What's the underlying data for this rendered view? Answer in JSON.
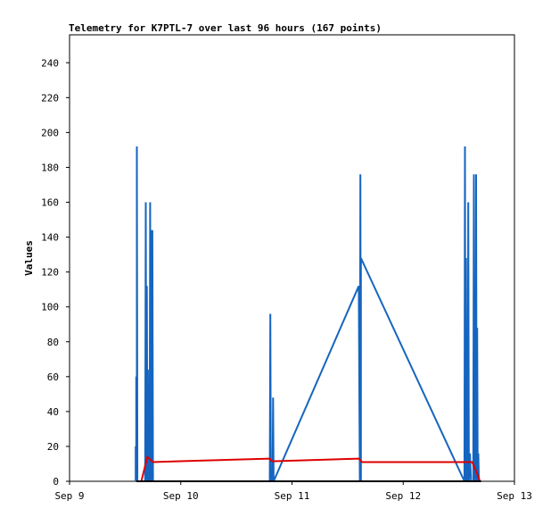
{
  "chart_data": {
    "type": "line",
    "title": "Telemetry for K7PTL-7 over last 96 hours (167 points)",
    "xlabel": "",
    "ylabel": "Values",
    "x_unit": "days since Sep 9 00:00",
    "xlim": [
      0,
      4
    ],
    "ylim": [
      0,
      256
    ],
    "x_ticks": [
      {
        "value": 0,
        "label": "Sep 9"
      },
      {
        "value": 1,
        "label": "Sep 10"
      },
      {
        "value": 2,
        "label": "Sep 11"
      },
      {
        "value": 3,
        "label": "Sep 12"
      },
      {
        "value": 4,
        "label": "Sep 13"
      }
    ],
    "y_ticks": [
      0,
      20,
      40,
      60,
      80,
      100,
      120,
      140,
      160,
      180,
      200,
      220,
      240
    ],
    "grid": false,
    "legend": "none",
    "series": [
      {
        "color": "#1565c0",
        "points": [
          [
            0.595,
            0
          ],
          [
            0.595,
            20
          ],
          [
            0.6,
            0
          ],
          [
            0.6,
            60
          ],
          [
            0.605,
            0
          ],
          [
            0.605,
            192
          ],
          [
            0.61,
            0
          ],
          [
            0.68,
            0
          ],
          [
            0.685,
            160
          ],
          [
            0.69,
            0
          ],
          [
            0.695,
            112
          ],
          [
            0.7,
            0
          ],
          [
            0.705,
            64
          ],
          [
            0.71,
            0
          ],
          [
            0.72,
            0
          ],
          [
            0.725,
            160
          ],
          [
            0.73,
            0
          ],
          [
            0.735,
            144
          ],
          [
            0.74,
            0
          ],
          [
            0.745,
            144
          ],
          [
            0.75,
            0
          ],
          [
            1.8,
            0
          ],
          [
            1.805,
            96
          ],
          [
            1.81,
            0
          ],
          [
            1.825,
            0
          ],
          [
            1.83,
            48
          ],
          [
            1.835,
            0
          ],
          [
            2.6,
            112
          ],
          [
            2.61,
            0
          ],
          [
            2.615,
            176
          ],
          [
            2.62,
            0
          ],
          [
            2.62,
            128
          ],
          [
            3.55,
            0
          ],
          [
            3.555,
            192
          ],
          [
            3.56,
            0
          ],
          [
            3.565,
            128
          ],
          [
            3.57,
            0
          ],
          [
            3.575,
            80
          ],
          [
            3.58,
            0
          ],
          [
            3.585,
            160
          ],
          [
            3.59,
            0
          ],
          [
            3.6,
            16
          ],
          [
            3.61,
            0
          ],
          [
            3.63,
            0
          ],
          [
            3.635,
            176
          ],
          [
            3.64,
            0
          ],
          [
            3.645,
            88
          ],
          [
            3.65,
            0
          ],
          [
            3.655,
            176
          ],
          [
            3.66,
            0
          ],
          [
            3.665,
            88
          ],
          [
            3.67,
            0
          ],
          [
            3.675,
            16
          ],
          [
            3.68,
            0
          ]
        ]
      },
      {
        "color": "#dd0000",
        "points": [
          [
            0.645,
            0
          ],
          [
            0.7,
            14
          ],
          [
            0.75,
            11
          ],
          [
            1.0,
            11.5
          ],
          [
            1.8,
            13
          ],
          [
            1.82,
            11.5
          ],
          [
            1.85,
            11.5
          ],
          [
            2.6,
            13
          ],
          [
            2.63,
            11
          ],
          [
            3.57,
            11
          ],
          [
            3.62,
            11
          ],
          [
            3.66,
            5
          ],
          [
            3.69,
            0
          ]
        ]
      },
      {
        "color": "#000000",
        "points": [
          [
            0.6,
            0
          ],
          [
            3.7,
            0
          ]
        ]
      }
    ]
  }
}
